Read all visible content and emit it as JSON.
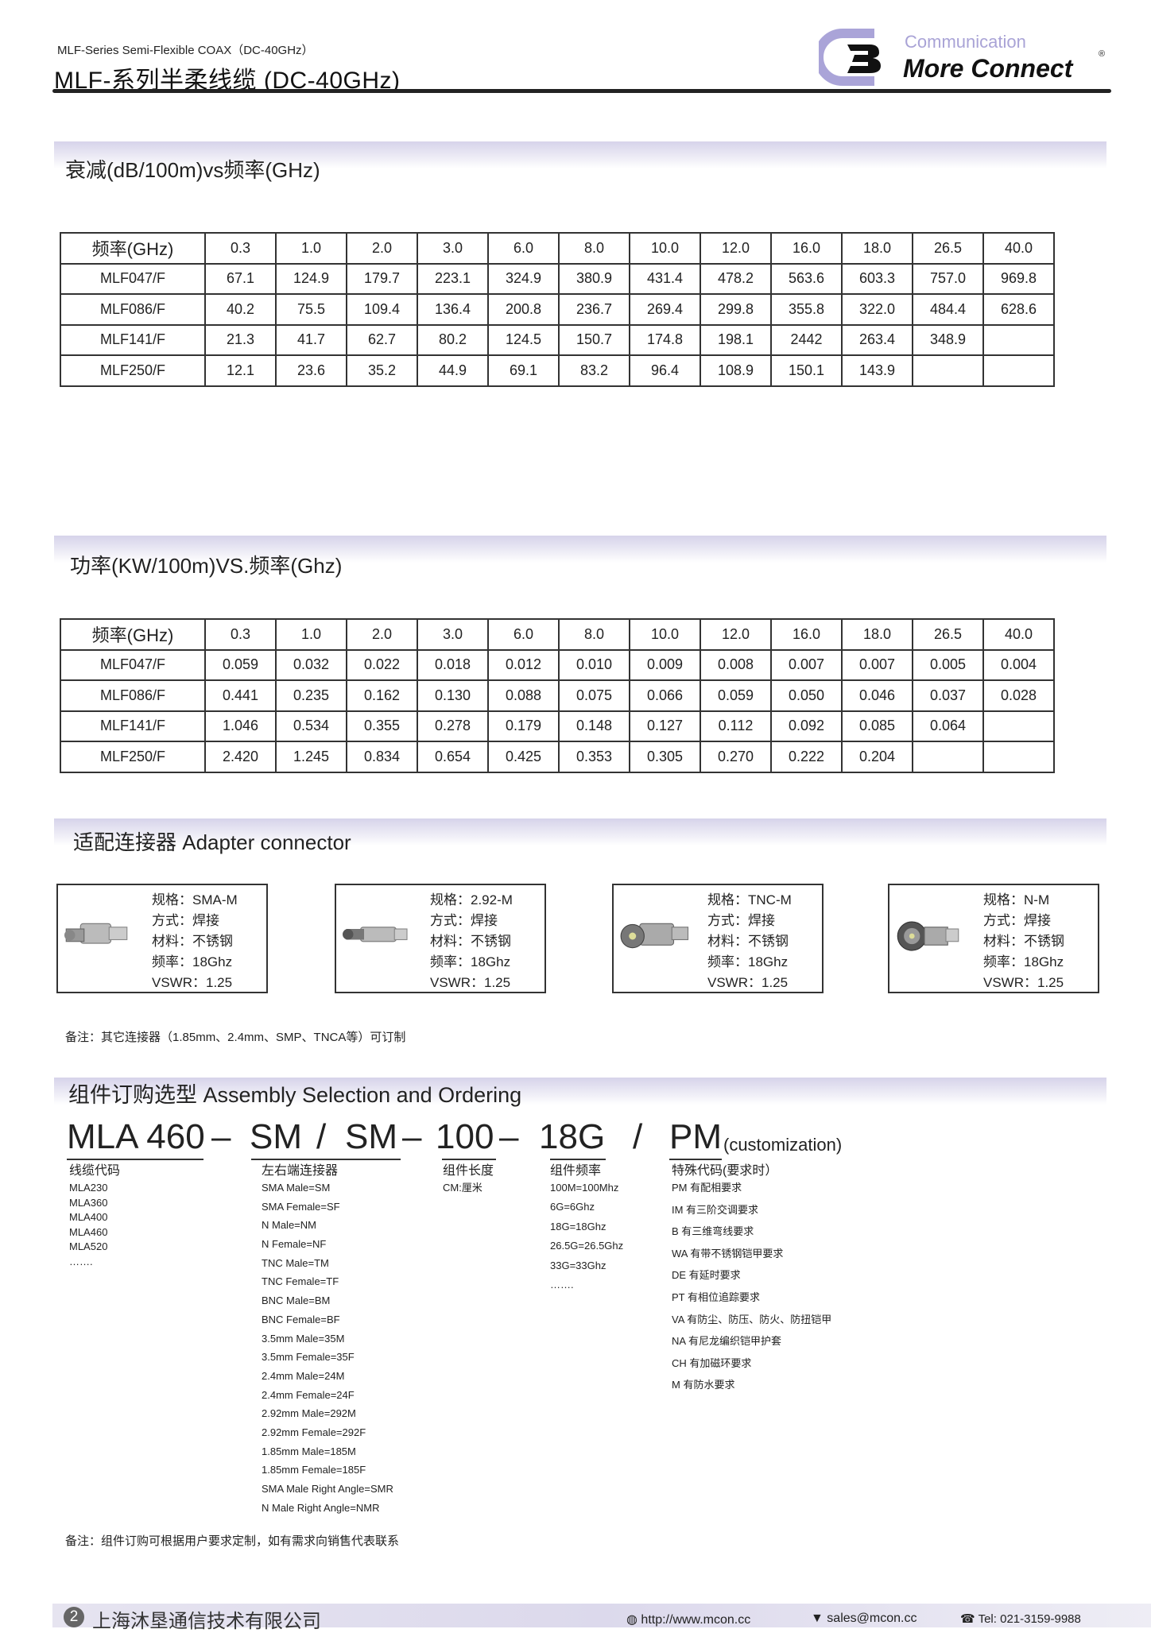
{
  "header": {
    "subtitle": "MLF-Series Semi-Flexible COAX（DC-40GHz）",
    "title": "MLF-系列半柔线缆 (DC-40GHz)",
    "logo": {
      "line1": "Communication",
      "line2": "More Connect",
      "mark": "®",
      "color_accent": "#a9a3d6"
    }
  },
  "attenuation": {
    "section_title": "衰减(dB/100m)vs频率(GHz)",
    "header": [
      "频率(GHz)",
      "0.3",
      "1.0",
      "2.0",
      "3.0",
      "6.0",
      "8.0",
      "10.0",
      "12.0",
      "16.0",
      "18.0",
      "26.5",
      "40.0"
    ],
    "rows": [
      [
        "MLF047/F",
        "67.1",
        "124.9",
        "179.7",
        "223.1",
        "324.9",
        "380.9",
        "431.4",
        "478.2",
        "563.6",
        "603.3",
        "757.0",
        "969.8"
      ],
      [
        "MLF086/F",
        "40.2",
        "75.5",
        "109.4",
        "136.4",
        "200.8",
        "236.7",
        "269.4",
        "299.8",
        "355.8",
        "322.0",
        "484.4",
        "628.6"
      ],
      [
        "MLF141/F",
        "21.3",
        "41.7",
        "62.7",
        "80.2",
        "124.5",
        "150.7",
        "174.8",
        "198.1",
        "2442",
        "263.4",
        "348.9",
        ""
      ],
      [
        "MLF250/F",
        "12.1",
        "23.6",
        "35.2",
        "44.9",
        "69.1",
        "83.2",
        "96.4",
        "108.9",
        "150.1",
        "143.9",
        "",
        ""
      ]
    ]
  },
  "power": {
    "section_title": "功率(KW/100m)VS.频率(Ghz)",
    "header": [
      "频率(GHz)",
      "0.3",
      "1.0",
      "2.0",
      "3.0",
      "6.0",
      "8.0",
      "10.0",
      "12.0",
      "16.0",
      "18.0",
      "26.5",
      "40.0"
    ],
    "rows": [
      [
        "MLF047/F",
        "0.059",
        "0.032",
        "0.022",
        "0.018",
        "0.012",
        "0.010",
        "0.009",
        "0.008",
        "0.007",
        "0.007",
        "0.005",
        "0.004"
      ],
      [
        "MLF086/F",
        "0.441",
        "0.235",
        "0.162",
        "0.130",
        "0.088",
        "0.075",
        "0.066",
        "0.059",
        "0.050",
        "0.046",
        "0.037",
        "0.028"
      ],
      [
        "MLF141/F",
        "1.046",
        "0.534",
        "0.355",
        "0.278",
        "0.179",
        "0.148",
        "0.127",
        "0.112",
        "0.092",
        "0.085",
        "0.064",
        ""
      ],
      [
        "MLF250/F",
        "2.420",
        "1.245",
        "0.834",
        "0.654",
        "0.425",
        "0.353",
        "0.305",
        "0.270",
        "0.222",
        "0.204",
        "",
        ""
      ]
    ]
  },
  "adapters": {
    "section_title": "适配连接器 Adapter connector",
    "items": [
      {
        "lines": [
          "规格：SMA-M",
          "方式：焊接",
          "材料：不锈钢",
          "频率：18Ghz",
          "VSWR：1.25"
        ]
      },
      {
        "lines": [
          "规格：2.92-M",
          "方式：焊接",
          "材料：不锈钢",
          "频率：18Ghz",
          "VSWR：1.25"
        ]
      },
      {
        "lines": [
          "规格：TNC-M",
          "方式：焊接",
          "材料：不锈钢",
          "频率：18Ghz",
          "VSWR：1.25"
        ]
      },
      {
        "lines": [
          "规格：N-M",
          "方式：焊接",
          "材料：不锈钢",
          "频率：18Ghz",
          "VSWR：1.25"
        ]
      }
    ],
    "note": "备注：其它连接器（1.85mm、2.4mm、SMP、TNCA等）可订制"
  },
  "ordering": {
    "section_title": "组件订购选型 Assembly Selection and Ordering",
    "code": {
      "p1": "MLA 460",
      "d1": "–",
      "p2": "SM",
      "s1": "/",
      "p3": "SM",
      "d2": "–",
      "p4": "100",
      "d3": "–",
      "p5": "18G",
      "s2": "/",
      "p6": "PM",
      "suffix": "(customization)"
    },
    "columns": [
      {
        "heading": "线缆代码",
        "items": [
          "MLA230",
          "MLA360",
          "MLA400",
          "MLA460",
          "MLA520",
          "……."
        ]
      },
      {
        "heading": "左右端连接器",
        "items": [
          "SMA Male=SM",
          "SMA Female=SF",
          "N Male=NM",
          "N Female=NF",
          "TNC Male=TM",
          "TNC Female=TF",
          "BNC Male=BM",
          "BNC Female=BF",
          "3.5mm Male=35M",
          "3.5mm Female=35F",
          "2.4mm Male=24M",
          "2.4mm Female=24F",
          "2.92mm Male=292M",
          "2.92mm Female=292F",
          "1.85mm Male=185M",
          "1.85mm Female=185F",
          "SMA Male Right Angle=SMR",
          "N Male Right Angle=NMR"
        ]
      },
      {
        "heading": "组件长度",
        "items": [
          "CM:厘米"
        ]
      },
      {
        "heading": "组件频率",
        "items": [
          "100M=100Mhz",
          "6G=6Ghz",
          "18G=18Ghz",
          "26.5G=26.5Ghz",
          "33G=33Ghz",
          "……."
        ]
      },
      {
        "heading": "特殊代码(要求时）",
        "items": [
          "PM 有配相要求",
          "IM 有三阶交调要求",
          "B  有三维弯线要求",
          "WA 有带不锈钢铠甲要求",
          "DE 有延时要求",
          "PT 有相位追踪要求",
          "VA 有防尘、防压、防火、防扭铠甲",
          "NA 有尼龙编织铠甲护套",
          "CH 有加磁环要求",
          "M  有防水要求"
        ]
      }
    ],
    "note": "备注：组件订购可根据用户要求定制，如有需求向销售代表联系"
  },
  "footer": {
    "page": "2",
    "company": "上海沐垦通信技术有限公司",
    "website": "http://www.mcon.cc",
    "email": "sales@mcon.cc",
    "tel": "Tel: 021-3159-9988",
    "icons": [
      "globe-icon",
      "mail-icon",
      "phone-icon"
    ]
  }
}
